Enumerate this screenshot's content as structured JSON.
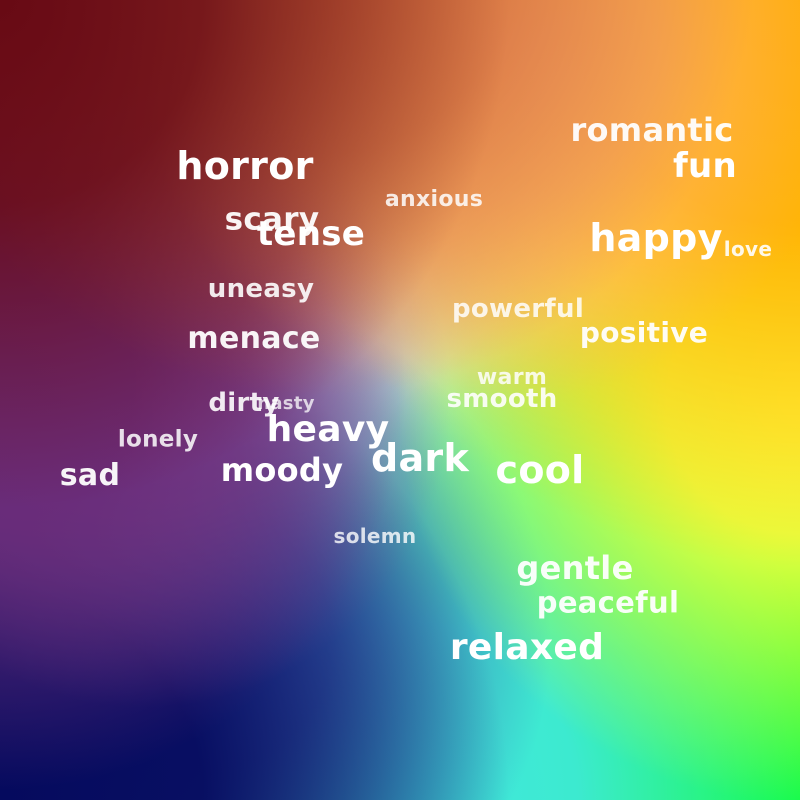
{
  "background": {
    "colors": {
      "top_left": "#680a14",
      "top_right": "#ffae00",
      "right_middle": "#ffff40",
      "bottom_left": "#050a5e",
      "bottom_middle": "#40e8e0",
      "bottom_right": "#10ff30",
      "center": "#dadce6",
      "left_middle": "#6a2c7a"
    }
  },
  "text_color": "#ffffff",
  "words": [
    {
      "text": "romantic"
    },
    {
      "text": "fun"
    },
    {
      "text": "horror"
    },
    {
      "text": "anxious"
    },
    {
      "text": "scary"
    },
    {
      "text": "tense"
    },
    {
      "text": "happy"
    },
    {
      "text": "love"
    },
    {
      "text": "uneasy"
    },
    {
      "text": "powerful"
    },
    {
      "text": "positive"
    },
    {
      "text": "menace"
    },
    {
      "text": "warm"
    },
    {
      "text": "smooth"
    },
    {
      "text": "dirty"
    },
    {
      "text": "nasty"
    },
    {
      "text": "heavy"
    },
    {
      "text": "lonely"
    },
    {
      "text": "dark"
    },
    {
      "text": "cool"
    },
    {
      "text": "sad"
    },
    {
      "text": "moody"
    },
    {
      "text": "solemn"
    },
    {
      "text": "gentle"
    },
    {
      "text": "peaceful"
    },
    {
      "text": "relaxed"
    }
  ]
}
